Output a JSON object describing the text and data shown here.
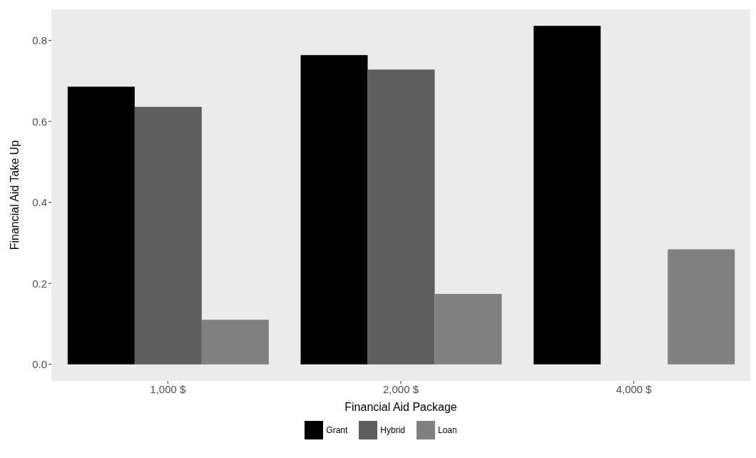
{
  "chart_data": {
    "type": "bar",
    "xlabel": "Financial Aid Package",
    "ylabel": "Financial Aid Take Up",
    "categories": [
      "1,000 $",
      "2,000 $",
      "4,000 $"
    ],
    "series": [
      {
        "name": "Grant",
        "color": "#000000",
        "values": [
          0.686,
          0.764,
          0.836
        ]
      },
      {
        "name": "Hybrid",
        "color": "#5e5e5e",
        "values": [
          0.636,
          0.728,
          null
        ]
      },
      {
        "name": "Loan",
        "color": "#808080",
        "values": [
          0.11,
          0.174,
          0.284
        ]
      }
    ],
    "ylim": [
      -0.041,
      0.877
    ],
    "yticks": [
      {
        "value": 0,
        "label": "0.0"
      },
      {
        "value": 0.2,
        "label": "0.2"
      },
      {
        "value": 0.4,
        "label": "0.4"
      },
      {
        "value": 0.6,
        "label": "0.6"
      },
      {
        "value": 0.8,
        "label": "0.8"
      }
    ],
    "legend": "bottom"
  }
}
